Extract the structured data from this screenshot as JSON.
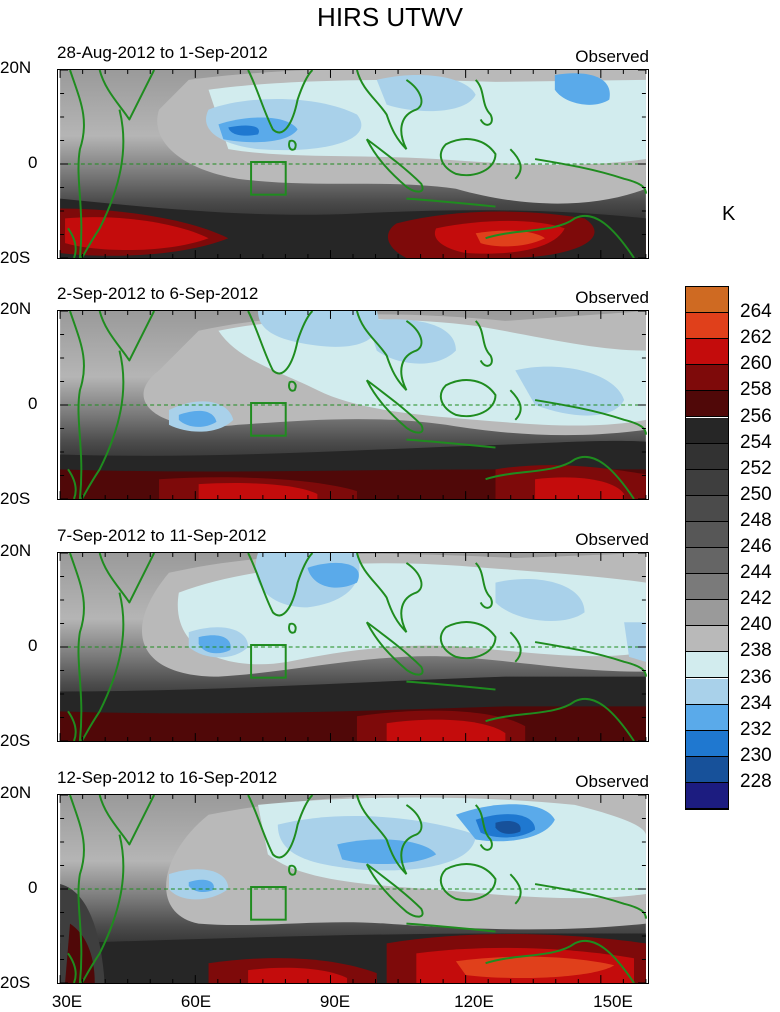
{
  "title": "HIRS UTWV",
  "unit": "K",
  "panels": [
    {
      "date": "28-Aug-2012 to 1-Sep-2012",
      "label": "Observed"
    },
    {
      "date": "2-Sep-2012 to 6-Sep-2012",
      "label": "Observed"
    },
    {
      "date": "7-Sep-2012 to 11-Sep-2012",
      "label": "Observed"
    },
    {
      "date": "12-Sep-2012 to 16-Sep-2012",
      "label": "Observed"
    }
  ],
  "y_ticks": [
    "20N",
    "0",
    "20S"
  ],
  "x_ticks": [
    "30E",
    "60E",
    "90E",
    "120E",
    "150E"
  ],
  "colorbar": {
    "labels": [
      "264",
      "262",
      "260",
      "258",
      "256",
      "254",
      "252",
      "250",
      "248",
      "246",
      "244",
      "242",
      "240",
      "238",
      "236",
      "234",
      "232",
      "230",
      "228"
    ],
    "colors": [
      "#cf6a22",
      "#e0401b",
      "#c40c0c",
      "#7e0a0a",
      "#500808",
      "#262626",
      "#323232",
      "#3e3e3e",
      "#4b4b4b",
      "#575757",
      "#656565",
      "#7a7a7a",
      "#9a9a9a",
      "#b9b9b9",
      "#d2ecee",
      "#a9d1ea",
      "#5aaaea",
      "#1f78d0",
      "#17519a",
      "#1c1c80"
    ]
  },
  "colors": {
    "coast": "#1f8c1f",
    "equator": "#1f8c1f"
  }
}
